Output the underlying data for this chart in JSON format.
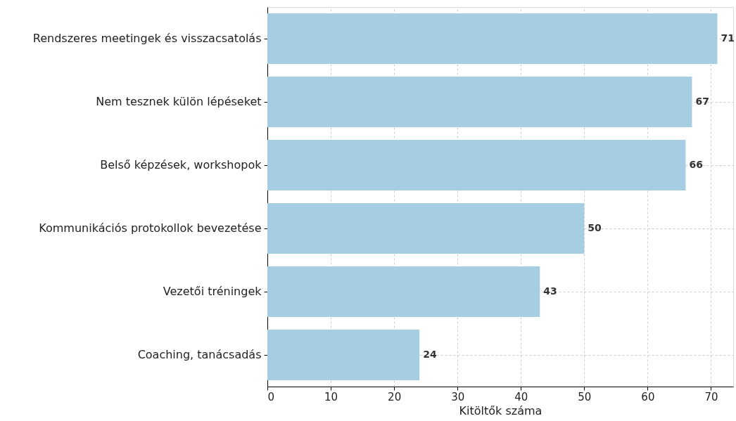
{
  "chart_data": {
    "type": "bar",
    "orientation": "horizontal",
    "xlabel": "Kitöltők száma",
    "categories": [
      "Rendszeres meetingek és visszacsatolás",
      "Nem tesznek külön lépéseket",
      "Belső képzések, workshopok",
      "Kommunikációs protokollok bevezetése",
      "Vezetői tréningek",
      "Coaching, tanácsadás"
    ],
    "values": [
      71,
      67,
      66,
      50,
      43,
      24
    ],
    "color": "#a6cee3",
    "data_labels": true,
    "xlim": [
      0,
      73.5
    ],
    "xticks": [
      0,
      10,
      20,
      30,
      40,
      50,
      60,
      70
    ],
    "grid": true
  }
}
